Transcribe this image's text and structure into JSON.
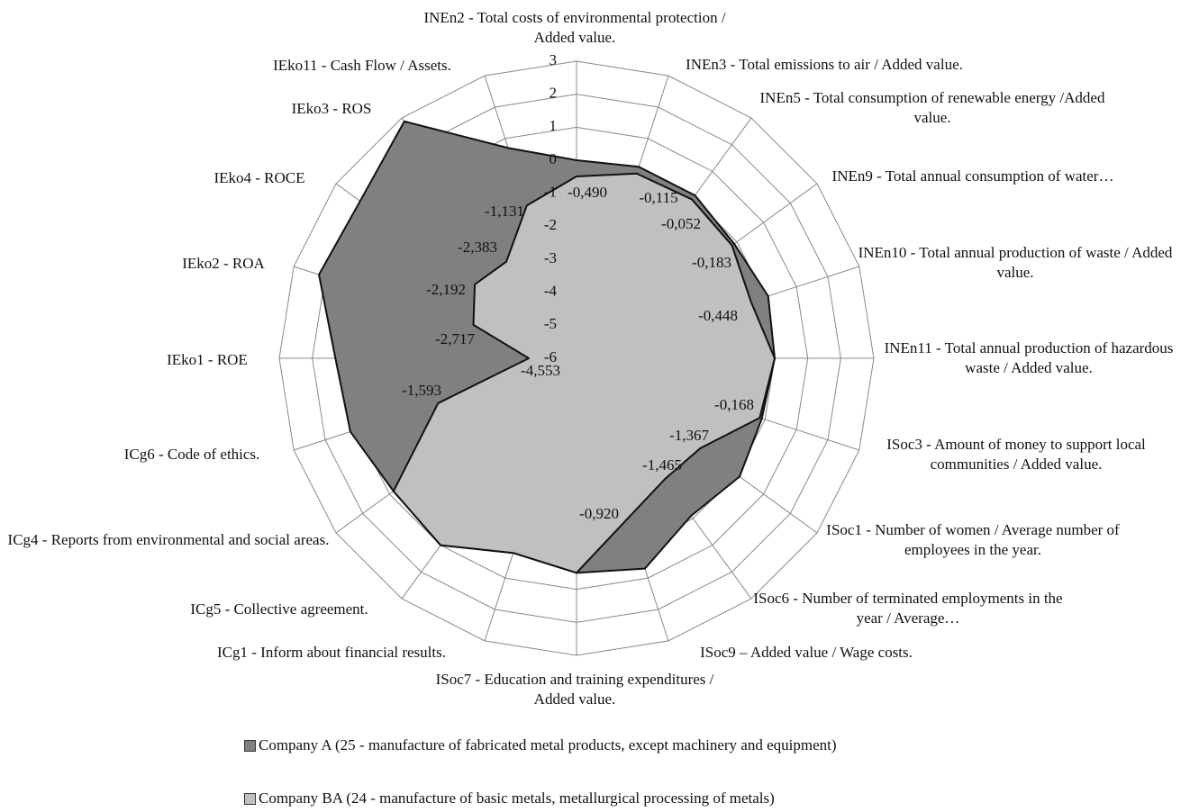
{
  "chart_data": {
    "type": "radar",
    "categories": [
      "INEn2  -  Total costs of environmental protection / Added value.",
      "INEn3  - Total emissions to air / Added value.",
      "INEn5  - Total consumption of renewable energy /Added value.",
      "INEn9 - Total annual consumption of water…",
      "INEn10  - Total annual production of waste / Added value.",
      "INEn11  - Total annual production of hazardous waste / Added value.",
      "ISoc3  - Amount of money to support local communities / Added value.",
      "ISoc1  - Number of women / Average number of employees in the year.",
      "ISoc6 - Number of terminated employments in the year  / Average…",
      "ISoc9 – Added value / Wage costs.",
      "ISoc7  - Education and training expenditures / Added value.",
      "ICg1  - Inform about financial results.",
      "ICg5  - Collective agreement.",
      "ICg4  - Reports from environmental and social areas.",
      "ICg6  - Code of ethics.",
      "IEko1  - ROE",
      "IEko2 - ROA",
      "IEko4  - ROCE",
      "IEko3  - ROS",
      "IEko11 - Cash Flow  / Assets."
    ],
    "series": [
      {
        "name": "Company A (25 - manufacture of fabricated metal products, except machinery and equipment)",
        "color": "#808080",
        "values": [
          0,
          0.1,
          0.1,
          -0.1,
          0.1,
          0,
          -0.1,
          0.1,
          -0.1,
          0.7,
          0.5,
          0.2,
          1.0,
          0.85,
          1.2,
          1.3,
          2.2,
          2.1,
          2.87,
          0.7
        ]
      },
      {
        "name": "Company BA (24 - manufacture of basic metals, metallurgical processing of metals)",
        "color": "#c0c0c0",
        "values": [
          -0.49,
          -0.115,
          -0.052,
          -0.183,
          -0.448,
          0,
          -0.168,
          -1.367,
          -1.465,
          -0.92,
          0.5,
          0.2,
          1.0,
          0.85,
          -1.593,
          -4.553,
          -2.717,
          -2.192,
          -2.383,
          -1.131
        ],
        "value_labels": [
          "-0,490",
          "-0,115",
          "-0,052",
          "-0,183",
          "-0,448",
          null,
          "-0,168",
          "-1,367",
          "-1,465",
          "-0,920",
          null,
          null,
          null,
          null,
          "-1,593",
          "-4,553",
          "-2,717",
          "-2,192",
          "-2,383",
          "-1,131"
        ]
      }
    ],
    "ylim": [
      -6,
      3
    ],
    "yticks": [
      -6,
      -5,
      -4,
      -3,
      -2,
      -1,
      0,
      1,
      2,
      3
    ],
    "grid": true
  }
}
